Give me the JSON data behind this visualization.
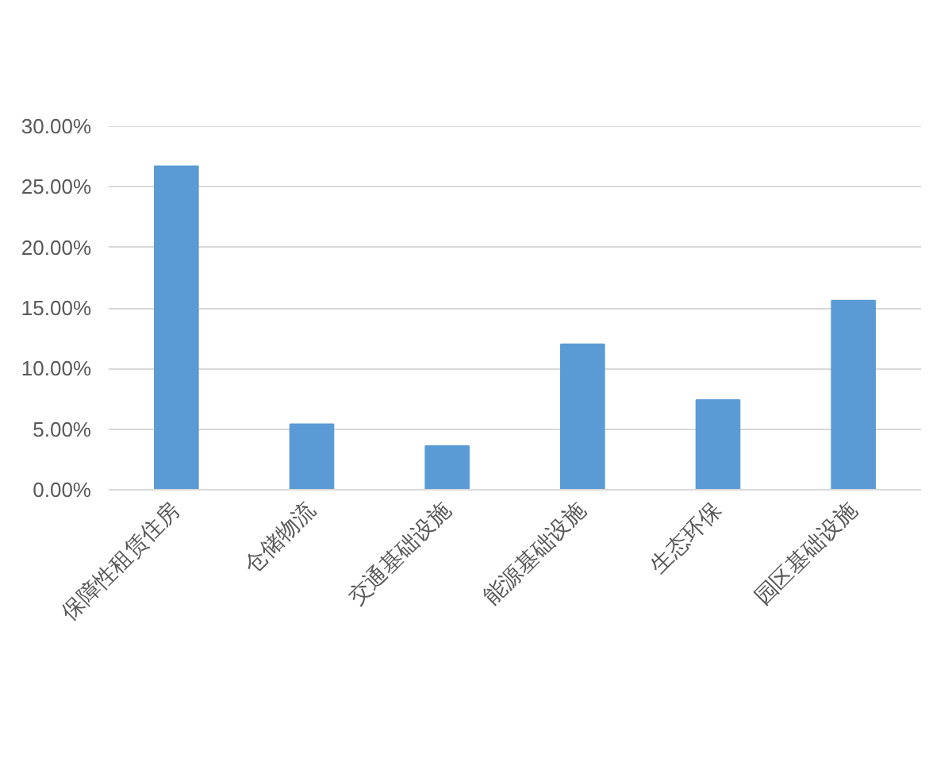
{
  "chart_data": {
    "type": "bar",
    "categories": [
      "保障性租赁住房",
      "仓储物流",
      "交通基础设施",
      "能源基础设施",
      "生态环保",
      "园区基础设施"
    ],
    "values": [
      26.7,
      5.4,
      3.6,
      12.0,
      7.4,
      15.6
    ],
    "color": "#5b9bd5",
    "ylim": [
      0,
      30
    ],
    "yticks": [
      {
        "value": 0,
        "label": "0.00%"
      },
      {
        "value": 5,
        "label": "5.00%"
      },
      {
        "value": 10,
        "label": "10.00%"
      },
      {
        "value": 15,
        "label": "15.00%"
      },
      {
        "value": 20,
        "label": "20.00%"
      },
      {
        "value": 25,
        "label": "25.00%"
      },
      {
        "value": 30,
        "label": "30.00%"
      }
    ],
    "grid": "y"
  }
}
